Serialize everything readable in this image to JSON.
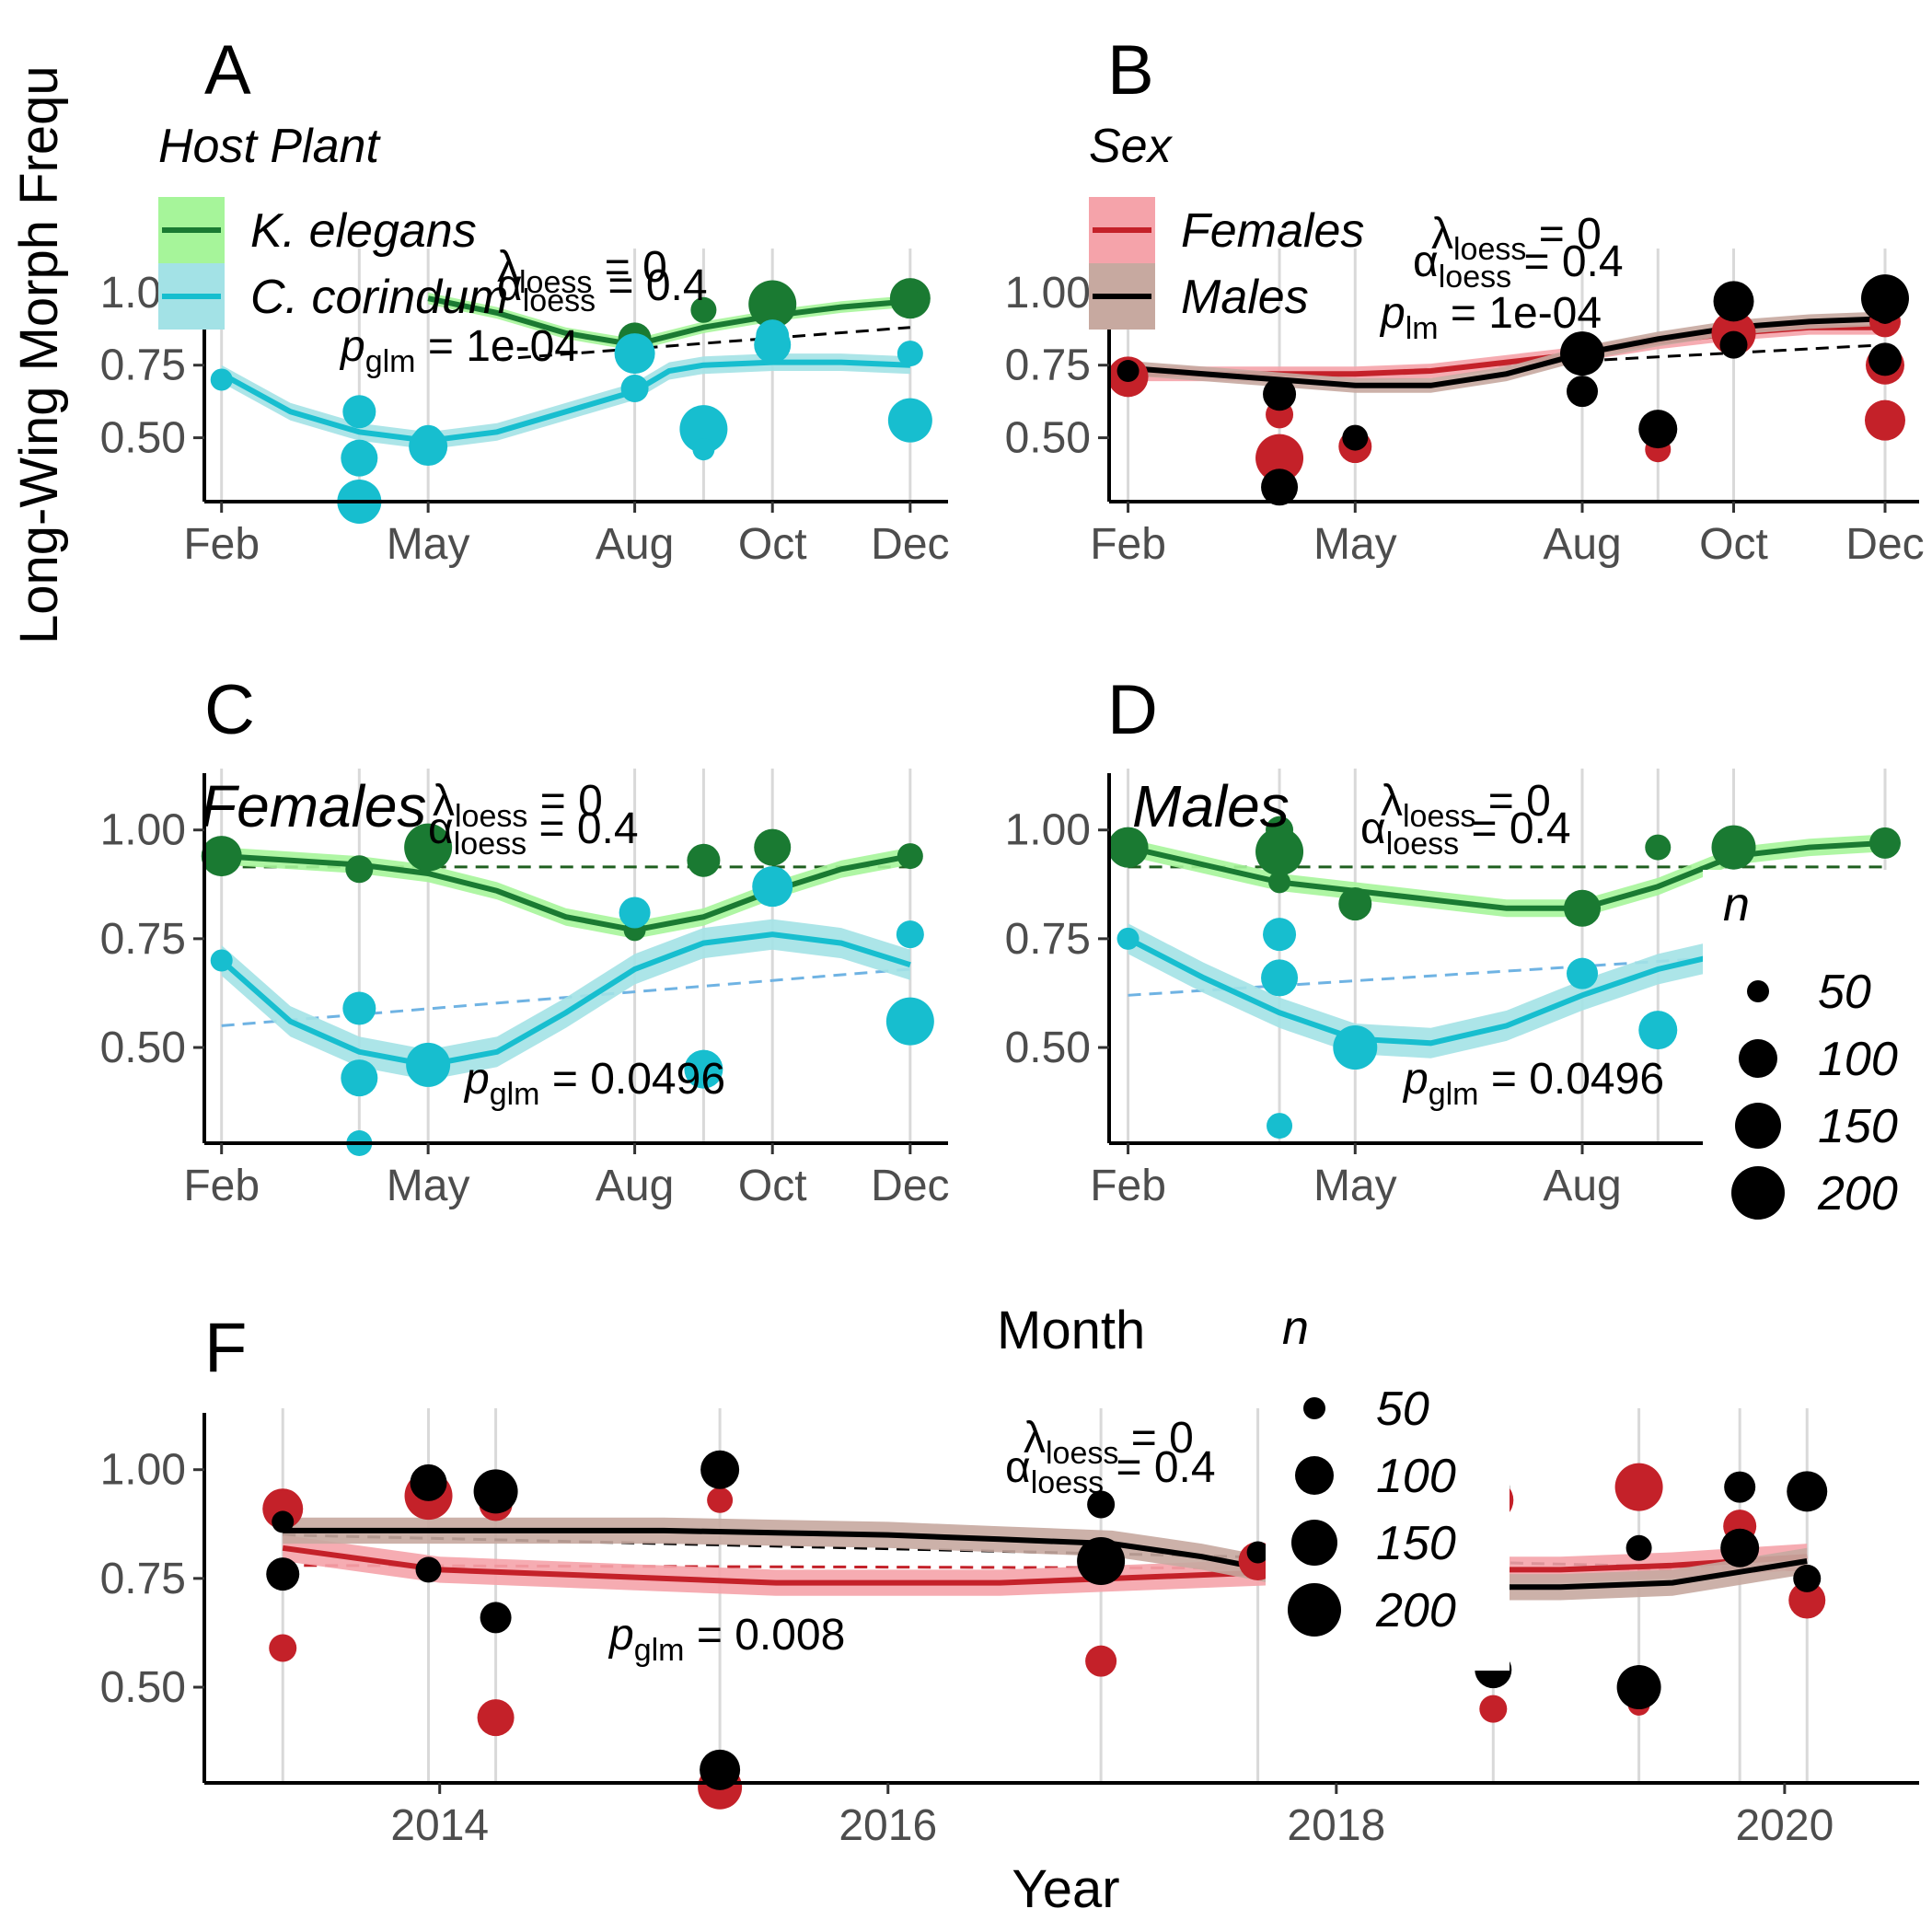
{
  "figure": {
    "ylabel": "Long-Wing Morph Frequ",
    "colors": {
      "k_elegans": "#1a7a32",
      "k_elegans_band": "#a6f59a",
      "c_corindum": "#17becf",
      "c_corindum_band": "#a3e2e6",
      "females": "#c42129",
      "females_band": "#f5a3aa",
      "males": "#000000",
      "males_band": "#c7a9a0",
      "glm_line_green": "#1f5f1f",
      "glm_line_blue": "#6fb3e3",
      "vline": "#d9d9d9"
    }
  },
  "legends": {
    "host_plant": {
      "title": "Host Plant",
      "items": [
        "K. elegans",
        "C. corindum"
      ]
    },
    "sex": {
      "title": "Sex",
      "items": [
        "Females",
        "Males"
      ]
    },
    "n_right": {
      "title": "n",
      "items": [
        "50",
        "100",
        "150",
        "200"
      ]
    },
    "n_bottom": {
      "title": "n",
      "items": [
        "50",
        "100",
        "150",
        "200"
      ]
    },
    "month_title": "Month"
  },
  "chart_data": [
    {
      "panel": "A",
      "type": "scatter",
      "xlabel": "",
      "ylabel": "Long-Wing Morph Frequ",
      "x_ticks": [
        "Feb",
        "May",
        "Aug",
        "Oct",
        "Dec"
      ],
      "y_ticks": [
        "0.50",
        "0.75",
        "1.00"
      ],
      "annotations": {
        "lambda": "λ",
        "lambda_sub": "loess",
        "lambda_val": "= 0",
        "alpha": "α",
        "alpha_sub": "loess",
        "alpha_val": "= 0.4",
        "p": "p",
        "p_sub": "glm",
        "p_val": "= 1e-04"
      },
      "series": [
        {
          "name": "K. elegans",
          "points": [
            [
              12.0,
              0.98
            ],
            [
              12.0,
              0.96
            ],
            [
              10.0,
              0.96
            ],
            [
              10.0,
              0.95
            ],
            [
              8.0,
              0.84
            ],
            [
              8.0,
              0.81
            ],
            [
              9.0,
              0.94
            ]
          ]
        },
        {
          "name": "C. corindum",
          "points": [
            [
              2.0,
              0.7
            ],
            [
              4.0,
              0.59
            ],
            [
              4.0,
              0.43
            ],
            [
              4.0,
              0.31
            ],
            [
              4.0,
              0.28
            ],
            [
              5.0,
              0.49
            ],
            [
              5.0,
              0.47
            ],
            [
              8.0,
              0.79
            ],
            [
              8.0,
              0.67
            ],
            [
              9.0,
              0.53
            ],
            [
              9.0,
              0.46
            ],
            [
              10.0,
              0.85
            ],
            [
              10.0,
              0.82
            ],
            [
              12.0,
              0.79
            ],
            [
              12.0,
              0.56
            ]
          ]
        }
      ]
    },
    {
      "panel": "B",
      "type": "scatter",
      "x_ticks": [
        "Feb",
        "May",
        "Aug",
        "Oct",
        "Dec"
      ],
      "y_ticks": [
        "0.50",
        "0.75",
        "1.00"
      ],
      "annotations": {
        "lambda": "λ",
        "lambda_sub": "loess",
        "lambda_val": "= 0",
        "alpha": "α",
        "alpha_sub": "loess",
        "alpha_val": "= 0.4",
        "p": "p",
        "p_sub": "lm",
        "p_val": "= 1e-04"
      },
      "series": [
        {
          "name": "Females",
          "points": [
            [
              2.0,
              0.71
            ],
            [
              4.0,
              0.58
            ],
            [
              4.0,
              0.43
            ],
            [
              4.0,
              0.31
            ],
            [
              5.0,
              0.47
            ],
            [
              8.0,
              0.78
            ],
            [
              9.0,
              0.46
            ],
            [
              10.0,
              0.86
            ],
            [
              12.0,
              0.9
            ],
            [
              12.0,
              0.75
            ],
            [
              12.0,
              0.56
            ]
          ]
        },
        {
          "name": "Males",
          "points": [
            [
              2.0,
              0.73
            ],
            [
              4.0,
              0.65
            ],
            [
              4.0,
              0.33
            ],
            [
              5.0,
              0.5
            ],
            [
              8.0,
              0.79
            ],
            [
              8.0,
              0.66
            ],
            [
              9.0,
              0.53
            ],
            [
              10.0,
              0.97
            ],
            [
              10.0,
              0.82
            ],
            [
              12.0,
              0.98
            ],
            [
              12.0,
              0.93
            ],
            [
              12.0,
              0.77
            ]
          ]
        }
      ]
    },
    {
      "panel": "C",
      "type": "scatter",
      "inset_title": "Females",
      "x_ticks": [
        "Feb",
        "May",
        "Aug",
        "Oct",
        "Dec"
      ],
      "y_ticks": [
        "0.50",
        "0.75",
        "1.00"
      ],
      "annotations": {
        "lambda": "λ",
        "lambda_sub": "loess",
        "lambda_val": "= 0",
        "alpha": "α",
        "alpha_sub": "loess",
        "alpha_val": "= 0.4",
        "p": "p",
        "p_sub": "glm",
        "p_val": "= 0.0496"
      },
      "series": [
        {
          "name": "K. elegans",
          "points": [
            [
              2.0,
              0.94
            ],
            [
              4.0,
              0.91
            ],
            [
              5.0,
              0.96
            ],
            [
              8.0,
              0.77
            ],
            [
              9.0,
              0.93
            ],
            [
              10.0,
              0.96
            ],
            [
              12.0,
              0.94
            ]
          ]
        },
        {
          "name": "C. corindum",
          "points": [
            [
              2.0,
              0.7
            ],
            [
              4.0,
              0.59
            ],
            [
              4.0,
              0.43
            ],
            [
              4.0,
              0.28
            ],
            [
              5.0,
              0.46
            ],
            [
              8.0,
              0.81
            ],
            [
              9.0,
              0.45
            ],
            [
              10.0,
              0.87
            ],
            [
              12.0,
              0.76
            ],
            [
              12.0,
              0.56
            ]
          ]
        }
      ]
    },
    {
      "panel": "D",
      "type": "scatter",
      "inset_title": "Males",
      "x_ticks": [
        "Feb",
        "May",
        "Aug"
      ],
      "y_ticks": [
        "0.50",
        "0.75",
        "1.00"
      ],
      "annotations": {
        "lambda": "λ",
        "lambda_sub": "loess",
        "lambda_val": "= 0",
        "alpha": "α",
        "alpha_sub": "loess",
        "alpha_val": "= 0.4",
        "p": "p",
        "p_sub": "glm",
        "p_val": "= 0.0496"
      },
      "series": [
        {
          "name": "K. elegans",
          "points": [
            [
              2.0,
              0.96
            ],
            [
              4.0,
              1.0
            ],
            [
              4.0,
              0.95
            ],
            [
              4.0,
              0.88
            ],
            [
              5.0,
              0.83
            ],
            [
              8.0,
              0.82
            ],
            [
              9.0,
              0.96
            ],
            [
              10.0,
              0.96
            ],
            [
              12.0,
              0.97
            ]
          ]
        },
        {
          "name": "C. corindum",
          "points": [
            [
              2.0,
              0.75
            ],
            [
              4.0,
              0.76
            ],
            [
              4.0,
              0.66
            ],
            [
              4.0,
              0.32
            ],
            [
              5.0,
              0.5
            ],
            [
              8.0,
              0.67
            ],
            [
              9.0,
              0.54
            ]
          ]
        }
      ]
    },
    {
      "panel": "F",
      "type": "scatter",
      "xlabel": "Year",
      "x_ticks": [
        "2014",
        "2016",
        "2018",
        "2020"
      ],
      "y_ticks": [
        "0.50",
        "0.75",
        "1.00"
      ],
      "annotations": {
        "lambda": "λ",
        "lambda_sub": "loess",
        "lambda_val": "= 0",
        "alpha": "α",
        "alpha_sub": "loess",
        "alpha_val": "= 0.4",
        "p": "p",
        "p_sub": "glm",
        "p_val": "= 0.008"
      },
      "series": [
        {
          "name": "Females",
          "points": [
            [
              2013.3,
              0.91
            ],
            [
              2013.3,
              0.59
            ],
            [
              2013.95,
              0.94
            ],
            [
              2013.95,
              0.77
            ],
            [
              2014.25,
              0.92
            ],
            [
              2014.25,
              0.43
            ],
            [
              2015.25,
              0.93
            ],
            [
              2015.25,
              0.27
            ],
            [
              2016.95,
              0.56
            ],
            [
              2017.65,
              0.79
            ],
            [
              2018.7,
              0.93
            ],
            [
              2018.7,
              0.45
            ],
            [
              2019.35,
              0.96
            ],
            [
              2019.35,
              0.46
            ],
            [
              2019.8,
              0.87
            ],
            [
              2020.1,
              0.7
            ]
          ]
        },
        {
          "name": "Males",
          "points": [
            [
              2013.3,
              0.88
            ],
            [
              2013.3,
              0.76
            ],
            [
              2013.95,
              0.97
            ],
            [
              2013.95,
              0.77
            ],
            [
              2014.25,
              0.95
            ],
            [
              2014.25,
              0.66
            ],
            [
              2015.25,
              1.0
            ],
            [
              2015.25,
              0.31
            ],
            [
              2016.95,
              0.92
            ],
            [
              2016.95,
              0.79
            ],
            [
              2017.65,
              0.81
            ],
            [
              2018.7,
              0.96
            ],
            [
              2018.7,
              0.54
            ],
            [
              2019.35,
              0.82
            ],
            [
              2019.35,
              0.5
            ],
            [
              2019.8,
              0.96
            ],
            [
              2019.8,
              0.82
            ],
            [
              2020.1,
              0.95
            ],
            [
              2020.1,
              0.75
            ]
          ]
        }
      ]
    }
  ]
}
